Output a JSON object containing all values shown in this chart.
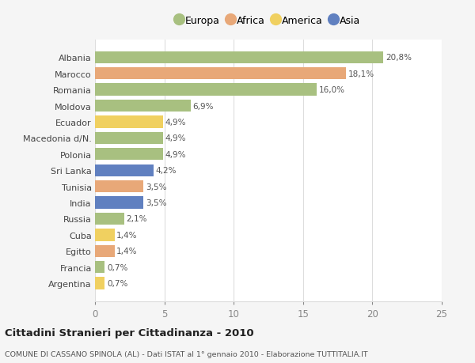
{
  "categories": [
    "Albania",
    "Marocco",
    "Romania",
    "Moldova",
    "Ecuador",
    "Macedonia d/N.",
    "Polonia",
    "Sri Lanka",
    "Tunisia",
    "India",
    "Russia",
    "Cuba",
    "Egitto",
    "Francia",
    "Argentina"
  ],
  "values": [
    20.8,
    18.1,
    16.0,
    6.9,
    4.9,
    4.9,
    4.9,
    4.2,
    3.5,
    3.5,
    2.1,
    1.4,
    1.4,
    0.7,
    0.7
  ],
  "labels": [
    "20,8%",
    "18,1%",
    "16,0%",
    "6,9%",
    "4,9%",
    "4,9%",
    "4,9%",
    "4,2%",
    "3,5%",
    "3,5%",
    "2,1%",
    "1,4%",
    "1,4%",
    "0,7%",
    "0,7%"
  ],
  "continents": [
    "Europa",
    "Africa",
    "Europa",
    "Europa",
    "America",
    "Europa",
    "Europa",
    "Asia",
    "Africa",
    "Asia",
    "Europa",
    "America",
    "Africa",
    "Europa",
    "America"
  ],
  "colors": {
    "Europa": "#a8c080",
    "Africa": "#e8a878",
    "America": "#f0d060",
    "Asia": "#6080c0"
  },
  "legend_labels": [
    "Europa",
    "Africa",
    "America",
    "Asia"
  ],
  "legend_colors": [
    "#a8c080",
    "#e8a878",
    "#f0d060",
    "#6080c0"
  ],
  "title": "Cittadini Stranieri per Cittadinanza - 2010",
  "subtitle": "COMUNE DI CASSANO SPINOLA (AL) - Dati ISTAT al 1° gennaio 2010 - Elaborazione TUTTITALIA.IT",
  "xlim": [
    0,
    25
  ],
  "xticks": [
    0,
    5,
    10,
    15,
    20,
    25
  ],
  "background_color": "#f5f5f5",
  "bar_background": "#ffffff",
  "grid_color": "#dddddd"
}
